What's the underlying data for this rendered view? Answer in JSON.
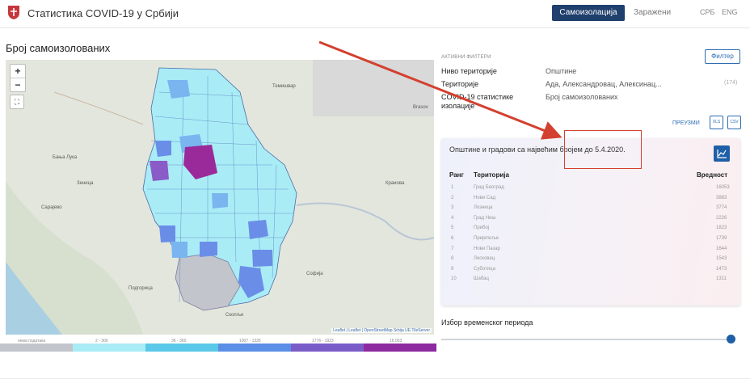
{
  "header": {
    "app_title": "Статистика COVID-19 у Србији",
    "tab_active": "Самоизолација",
    "tab_infected": "Заражени",
    "lang_srb": "СРБ",
    "lang_eng": "ENG"
  },
  "map": {
    "title": "Број самоизолованих",
    "zoom_in": "+",
    "zoom_out": "−",
    "attribution": "Leaflet | Leaflet | OpenStreetMap Srbija UE TileServer",
    "labels": {
      "brasov": "Brasov",
      "sarajevo": "Сарајево",
      "sofia": "Софија",
      "podgorica": "Подгорица",
      "skopje": "Скопље",
      "banja_luka": "Бања Лука",
      "zenica": "Зеница",
      "timisoara": "Темишвар",
      "craiova": "Краиова"
    },
    "colors": {
      "no_data": "#c2c5cc",
      "c1": "#a9ecf6",
      "c2": "#7ab5f0",
      "c3": "#6a8ee8",
      "c4": "#8a5cc8",
      "c5": "#9a2a9a"
    }
  },
  "legend": [
    {
      "label": "нема података",
      "color": "#c2c5cc"
    },
    {
      "label": "2 - 300",
      "color": "#a9ecf6"
    },
    {
      "label": "36 - 300",
      "color": "#5ac8e8"
    },
    {
      "label": "1007 - 1326",
      "color": "#5b8fe6"
    },
    {
      "label": "1776 - 1923",
      "color": "#7a5cc8"
    },
    {
      "label": "16.053",
      "color": "#8e2aa0"
    }
  ],
  "filters": {
    "heading": "АКТИВНИ ФИЛТЕРИ",
    "button": "Филтер",
    "rows": [
      {
        "label": "Ниво територије",
        "value": "Општине"
      },
      {
        "label": "Територије",
        "value": "Ада, Александровац, Алексинац..."
      },
      {
        "label": "COVID-19 статистике",
        "label2": "изолације",
        "value": "Број самоизолованих"
      }
    ],
    "extra_count": "(174)",
    "download": "ПРЕУЗМИ",
    "dl_xls": "XLS",
    "dl_csv": "CSV"
  },
  "table": {
    "title": "Општине и градови са највећим бројем до 5.4.2020.",
    "headers": {
      "rank": "Ранг",
      "territory": "Територија",
      "value": "Вредност"
    },
    "rows": [
      {
        "rank": "1",
        "territory": "Град Београд",
        "value": "16053"
      },
      {
        "rank": "2",
        "territory": "Нови Сад",
        "value": "3883"
      },
      {
        "rank": "3",
        "territory": "Лозница",
        "value": "3774"
      },
      {
        "rank": "4",
        "territory": "Град Ниш",
        "value": "2226"
      },
      {
        "rank": "5",
        "territory": "Прибој",
        "value": "1823"
      },
      {
        "rank": "6",
        "territory": "Пријепоље",
        "value": "1739"
      },
      {
        "rank": "7",
        "territory": "Нови Пазар",
        "value": "1644"
      },
      {
        "rank": "8",
        "territory": "Лесковац",
        "value": "1543"
      },
      {
        "rank": "9",
        "territory": "Суботица",
        "value": "1473"
      },
      {
        "rank": "10",
        "territory": "Шабац",
        "value": "1311"
      }
    ]
  },
  "period": {
    "title": "Избор временског периода",
    "slider_value": 1.0
  }
}
